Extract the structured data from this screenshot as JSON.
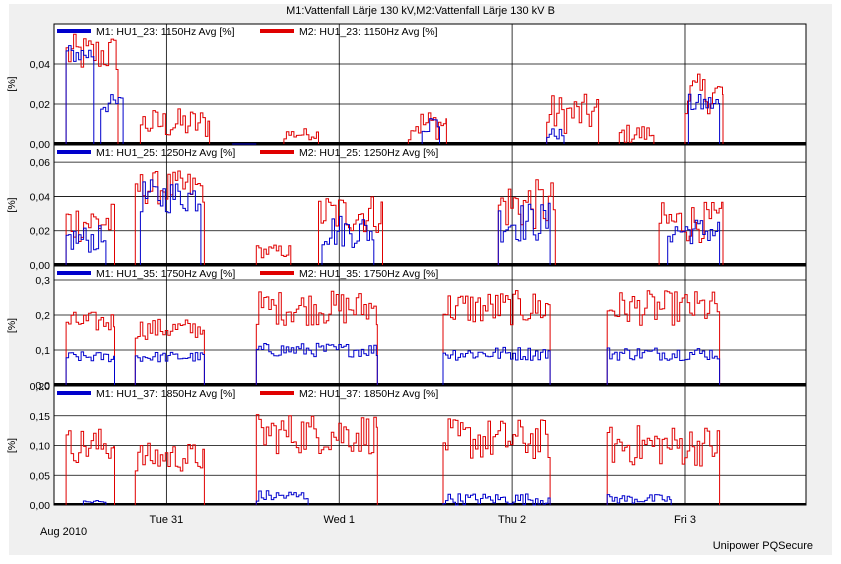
{
  "title": "M1:Vattenfall Lärje 130 kV,M2:Vattenfall Lärje 130 kV B",
  "footer": {
    "date": "Aug 2010",
    "brand": "Unipower PQSecure"
  },
  "colors": {
    "m1": "#0000cc",
    "m2": "#e00000",
    "background": "#f0f0f0",
    "plot": "#ffffff",
    "grid": "#000000"
  },
  "x_axis": {
    "ticks": [
      {
        "label": "Tue 31",
        "day": 1.0
      },
      {
        "label": "Wed 1",
        "day": 2.0
      },
      {
        "label": "Thu 2",
        "day": 3.0
      },
      {
        "label": "Fri 3",
        "day": 4.0
      }
    ],
    "range_days": [
      0.35,
      4.7
    ]
  },
  "chart_data": [
    {
      "type": "line",
      "ylabel": "[%]",
      "yticks": [
        "0,00",
        "0,02",
        "0,04"
      ],
      "ylim": [
        0,
        0.06
      ],
      "series": [
        {
          "name": "M1: HU1_23: 1150Hz Avg  [%]",
          "color": "#0000cc",
          "bursts": [
            [
              0.42,
              0.58,
              0.045,
              0.005
            ],
            [
              0.62,
              0.75,
              0.02,
              0.005
            ],
            [
              1.38,
              1.52,
              0.0,
              0.0
            ],
            [
              2.48,
              2.58,
              0.01,
              0.005
            ],
            [
              3.2,
              3.3,
              0.005,
              0.003
            ],
            [
              4.02,
              4.2,
              0.02,
              0.005
            ]
          ]
        },
        {
          "name": "M2: HU1_23: 1150Hz Avg  [%]",
          "color": "#e00000",
          "bursts": [
            [
              0.42,
              0.72,
              0.045,
              0.01
            ],
            [
              0.85,
              1.25,
              0.01,
              0.008
            ],
            [
              1.68,
              1.88,
              0.005,
              0.003
            ],
            [
              2.4,
              2.62,
              0.01,
              0.008
            ],
            [
              3.2,
              3.5,
              0.015,
              0.01
            ],
            [
              3.62,
              3.82,
              0.005,
              0.005
            ],
            [
              4.0,
              4.22,
              0.025,
              0.01
            ]
          ]
        }
      ]
    },
    {
      "type": "line",
      "ylabel": "[%]",
      "yticks": [
        "0,00",
        "0,02",
        "0,04",
        "0,06"
      ],
      "ylim": [
        0,
        0.07
      ],
      "series": [
        {
          "name": "M1: HU1_25: 1250Hz Avg  [%]",
          "color": "#0000cc",
          "bursts": [
            [
              0.42,
              0.65,
              0.015,
              0.008
            ],
            [
              0.85,
              1.2,
              0.04,
              0.01
            ],
            [
              1.9,
              2.2,
              0.02,
              0.01
            ],
            [
              2.92,
              3.22,
              0.025,
              0.012
            ],
            [
              3.9,
              4.2,
              0.02,
              0.008
            ]
          ]
        },
        {
          "name": "M2: HU1_25: 1250Hz Avg  [%]",
          "color": "#e00000",
          "bursts": [
            [
              0.42,
              0.7,
              0.025,
              0.012
            ],
            [
              0.82,
              1.22,
              0.045,
              0.01
            ],
            [
              1.52,
              1.72,
              0.008,
              0.004
            ],
            [
              1.88,
              2.25,
              0.03,
              0.012
            ],
            [
              2.92,
              3.25,
              0.035,
              0.015
            ],
            [
              3.85,
              4.22,
              0.025,
              0.012
            ]
          ]
        }
      ]
    },
    {
      "type": "line",
      "ylabel": "[%]",
      "yticks": [
        "0,0",
        "0,1",
        "0,2",
        "0,3"
      ],
      "ylim": [
        0,
        0.34
      ],
      "series": [
        {
          "name": "M1: HU1_35: 1750Hz Avg  [%]",
          "color": "#0000cc",
          "bursts": [
            [
              0.42,
              0.7,
              0.08,
              0.015
            ],
            [
              0.82,
              1.22,
              0.08,
              0.015
            ],
            [
              1.52,
              2.22,
              0.1,
              0.02
            ],
            [
              2.6,
              3.22,
              0.09,
              0.02
            ],
            [
              3.55,
              4.2,
              0.09,
              0.02
            ]
          ]
        },
        {
          "name": "M2: HU1_35: 1750Hz Avg  [%]",
          "color": "#e00000",
          "bursts": [
            [
              0.42,
              0.7,
              0.18,
              0.03
            ],
            [
              0.82,
              1.22,
              0.16,
              0.03
            ],
            [
              1.52,
              2.22,
              0.22,
              0.05
            ],
            [
              2.6,
              3.22,
              0.22,
              0.05
            ],
            [
              3.55,
              4.2,
              0.22,
              0.05
            ]
          ]
        }
      ]
    },
    {
      "type": "line",
      "ylabel": "[%]",
      "yticks": [
        "0,00",
        "0,05",
        "0,10",
        "0,15",
        "0,20"
      ],
      "ylim": [
        0,
        0.2
      ],
      "series": [
        {
          "name": "M1: HU1_37: 1850Hz Avg  [%]",
          "color": "#0000cc",
          "bursts": [
            [
              0.52,
              0.65,
              0.005,
              0.005
            ],
            [
              1.52,
              1.82,
              0.015,
              0.01
            ],
            [
              2.6,
              3.22,
              0.01,
              0.01
            ],
            [
              3.55,
              3.92,
              0.01,
              0.008
            ]
          ]
        },
        {
          "name": "M2: HU1_37: 1850Hz Avg  [%]",
          "color": "#e00000",
          "bursts": [
            [
              0.42,
              0.7,
              0.1,
              0.03
            ],
            [
              0.82,
              1.22,
              0.08,
              0.025
            ],
            [
              1.52,
              2.22,
              0.12,
              0.035
            ],
            [
              2.6,
              3.22,
              0.11,
              0.035
            ],
            [
              3.55,
              4.2,
              0.1,
              0.035
            ]
          ]
        }
      ]
    }
  ]
}
